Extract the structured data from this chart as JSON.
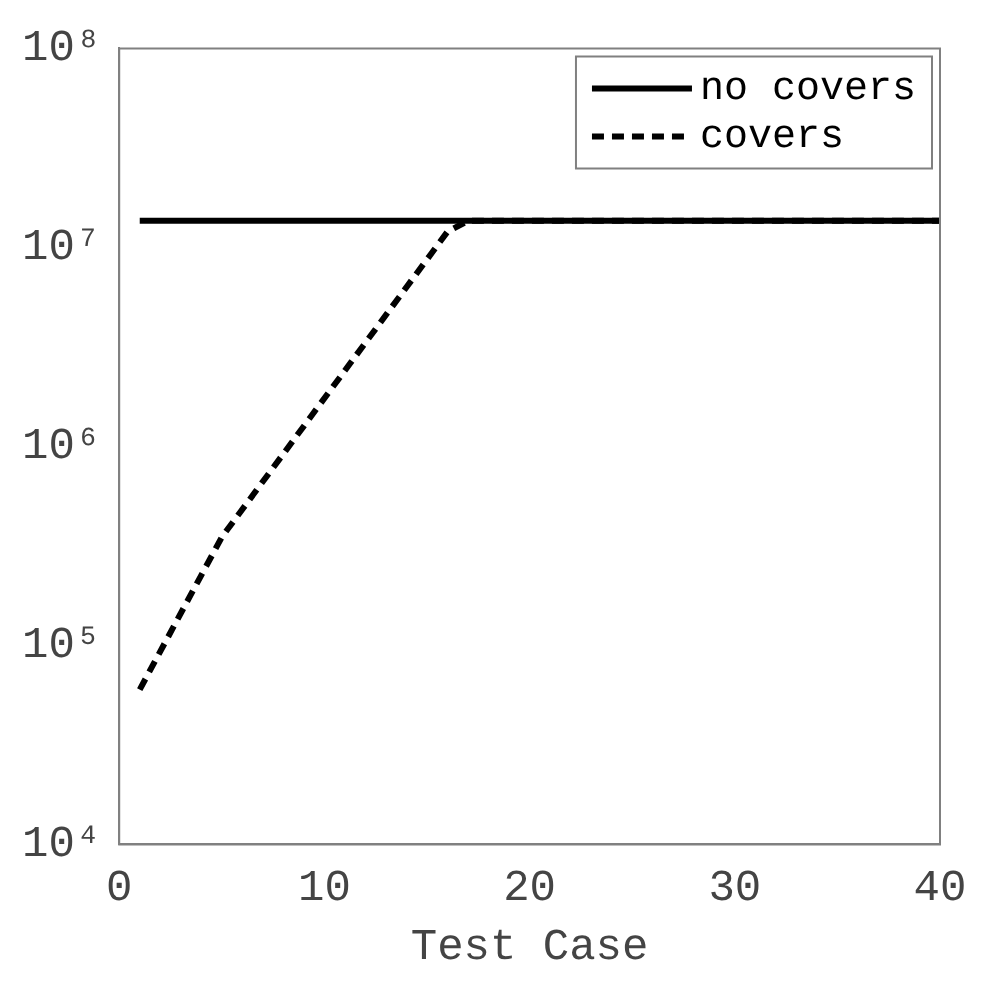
{
  "chart_data": {
    "type": "line",
    "xlabel": "Test Case",
    "log": "y",
    "grid": false,
    "legend": "top right",
    "xlim": [
      0,
      40
    ],
    "xticks": [
      0,
      10,
      20,
      30,
      40
    ],
    "ylim": [
      10000,
      100000000
    ],
    "yticks": [
      {
        "value": 10000,
        "label": "10⁴"
      },
      {
        "value": 100000,
        "label": "10⁵"
      },
      {
        "value": 1000000,
        "label": "10⁶"
      },
      {
        "value": 10000000,
        "label": "10⁷"
      },
      {
        "value": 100000000,
        "label": "10⁸"
      }
    ],
    "series": [
      {
        "name": "no covers",
        "color": "#000000",
        "line_style": "solid",
        "x": [
          1,
          40
        ],
        "values": [
          13600000,
          13600000
        ]
      },
      {
        "name": "covers",
        "color": "#000000",
        "line_style": "dashed",
        "x": [
          1,
          5,
          16,
          17,
          40
        ],
        "values": [
          60000,
          350000,
          12000000,
          13600000,
          13600000
        ]
      }
    ]
  }
}
